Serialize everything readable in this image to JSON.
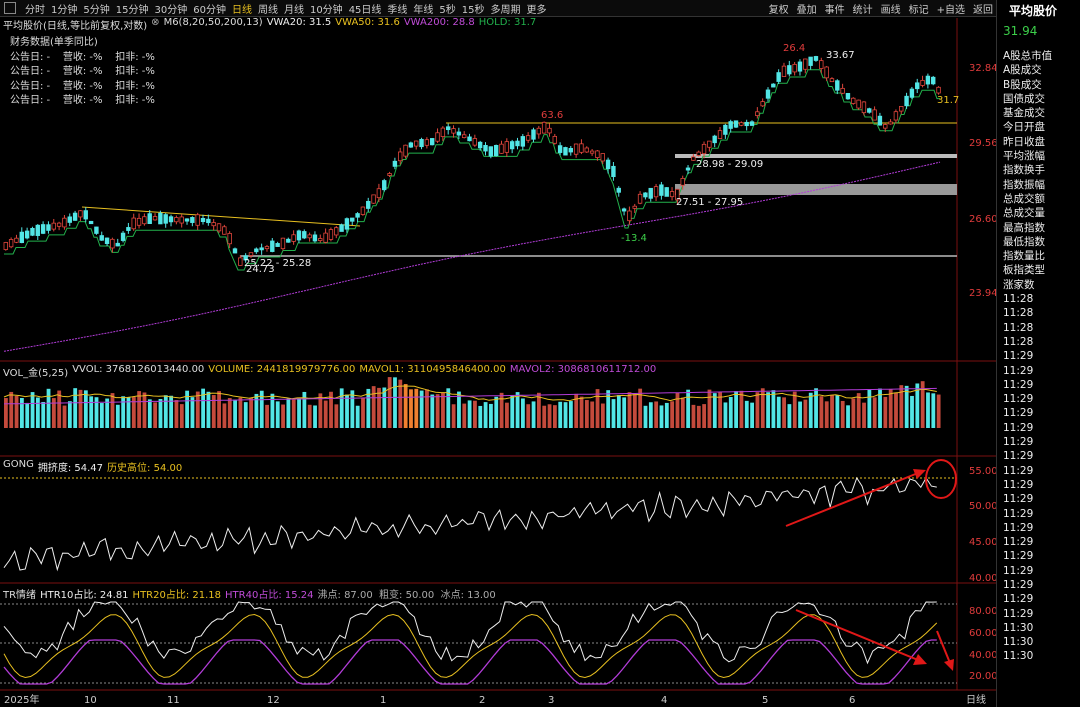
{
  "periods": [
    "分时",
    "1分钟",
    "5分钟",
    "15分钟",
    "30分钟",
    "60分钟",
    "日线",
    "周线",
    "月线",
    "10分钟",
    "45日线",
    "季线",
    "年线",
    "5秒",
    "15秒",
    "多周期",
    "更多"
  ],
  "active_period": "日线",
  "tools": [
    "复权",
    "叠加",
    "事件",
    "统计",
    "画线",
    "标记",
    "+自选",
    "返回"
  ],
  "main_legend": {
    "name": "平均股价(日线,等比前复权,对数)",
    "m6": "M6(8,20,50,200,13)",
    "vwa20": "VWA20: 31.5",
    "vwa50": "VWA50: 31.6",
    "vwa200": "VWA200: 28.8",
    "hold": "HOLD: 31.7"
  },
  "finance": {
    "title": "财务数据(单季同比)",
    "rows": [
      "公告日: -    营收: -%    扣非: -%",
      "公告日: -    营收: -%    扣非: -%",
      "公告日: -    营收: -%    扣非: -%",
      "公告日: -    营收: -%    扣非: -%"
    ]
  },
  "price_axis": [
    "32.84",
    "29.56",
    "26.60",
    "23.94"
  ],
  "price_annotations": {
    "high1": "26.4",
    "high2": "33.67",
    "mid_high": "63.6",
    "low": "-13.4",
    "low2": "24.73",
    "range1": "25.22 - 25.28",
    "range2": "28.98 - 29.09",
    "range3": "27.51 - 27.95",
    "last": "31.7"
  },
  "volume_legend": {
    "name": "VOL_金(5,25)",
    "vvol": "VVOL: 3768126013440.00",
    "volume": "VOLUME: 2441819979776.00",
    "mavol1": "MAVOL1: 3110495846400.00",
    "mavol2": "MAVOL2: 3086810611712.00"
  },
  "gong_legend": {
    "name": "GONG",
    "crowd": "拥挤度: 54.47",
    "hist": "历史高位: 54.00"
  },
  "gong_axis": [
    "55.00",
    "50.00",
    "45.00",
    "40.00"
  ],
  "tr_legend": {
    "name": "TR情绪",
    "htr10": "HTR10占比: 24.81",
    "htr20": "HTR20占比: 21.18",
    "htr40": "HTR40占比: 15.24",
    "rest": "沸点: 87.00  粗变: 50.00  冰点: 13.00"
  },
  "tr_axis": [
    "80.00",
    "60.00",
    "40.00",
    "20.00"
  ],
  "x_axis": [
    "2025年",
    "10",
    "11",
    "12",
    "1",
    "2",
    "3",
    "4",
    "5",
    "6"
  ],
  "x_axis_right": "日线",
  "right_panel": {
    "title": "平均股价",
    "price": "31.94",
    "items": [
      "A股总市值",
      "A股成交",
      "B股成交",
      "国债成交",
      "基金成交",
      "今日开盘",
      "昨日收盘",
      "平均涨幅",
      "指数换手",
      "指数振幅",
      "总成交额",
      "总成交量",
      "最高指数",
      "最低指数",
      "指数量比",
      "板指类型",
      "涨家数",
      "11:28",
      "11:28",
      "11:28",
      "11:28",
      "11:29",
      "11:29",
      "11:29",
      "11:29",
      "11:29",
      "11:29",
      "11:29",
      "11:29",
      "11:29",
      "11:29",
      "11:29",
      "11:29",
      "11:29",
      "11:29",
      "11:29",
      "11:29",
      "11:29",
      "11:29",
      "11:29",
      "11:30",
      "11:30",
      "11:30"
    ]
  },
  "colors": {
    "up": "#e0463c",
    "down": "#52e6e6",
    "ma_green": "#22b14c",
    "ma_purple": "#b23cd8",
    "yellow": "#e8c020",
    "white": "#e6e6e6",
    "arrow": "#e01818"
  }
}
